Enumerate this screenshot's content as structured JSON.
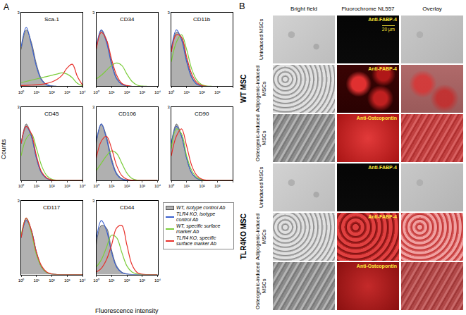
{
  "figure": {
    "panel_a_label": "A",
    "y_label": "Counts",
    "x_label": "Fluorescence intensity",
    "legend": "lower right"
  },
  "chart_data": [
    {
      "type": "line",
      "title": "Sca-1",
      "log": "x",
      "grid": false,
      "x": [
        1,
        2.15,
        4.64,
        10,
        21.5,
        46.4,
        100,
        215,
        464,
        1000,
        2154,
        4642,
        10000
      ],
      "xlim": [
        1,
        10000
      ],
      "xticks": [
        {
          "value": 1,
          "label": "10⁰"
        },
        {
          "value": 10,
          "label": "10¹"
        },
        {
          "value": 100,
          "label": "10²"
        },
        {
          "value": 1000,
          "label": "10³"
        },
        {
          "value": 10000,
          "label": "10⁴"
        }
      ],
      "ylim": [
        0,
        3
      ],
      "yticks": [
        3
      ],
      "series": [
        {
          "name": "WT, isotype control Ab",
          "type": "area",
          "color": "#b0b0b0",
          "values": [
            1.5,
            2.3,
            1.8,
            0.9,
            0.3,
            0.08,
            0.02,
            0,
            0,
            0,
            0,
            0,
            0
          ]
        },
        {
          "name": "TLR4 KO, isotype control Ab",
          "type": "line",
          "color": "#3a5fcd",
          "values": [
            1.6,
            2.4,
            1.7,
            0.8,
            0.25,
            0.06,
            0.01,
            0,
            0,
            0,
            0,
            0,
            0
          ]
        },
        {
          "name": "WT, specific surface marker Ab",
          "type": "line",
          "color": "#7ccd3c",
          "values": [
            0.15,
            0.2,
            0.25,
            0.3,
            0.35,
            0.4,
            0.45,
            0.5,
            0.55,
            0.5,
            0.35,
            0.12,
            0.02
          ]
        },
        {
          "name": "TLR4 KO, specific surface marker Ab",
          "type": "line",
          "color": "#e8302a",
          "values": [
            0.03,
            0.04,
            0.05,
            0.06,
            0.08,
            0.12,
            0.18,
            0.28,
            0.45,
            0.75,
            0.9,
            0.4,
            0.05
          ]
        }
      ]
    },
    {
      "type": "line",
      "title": "CD34",
      "log": "x",
      "grid": false,
      "x": [
        1,
        2.15,
        4.64,
        10,
        21.5,
        46.4,
        100,
        215,
        464,
        1000,
        2154,
        4642,
        10000
      ],
      "xlim": [
        1,
        10000
      ],
      "xticks": [
        {
          "value": 1,
          "label": "10⁰"
        },
        {
          "value": 10,
          "label": "10¹"
        },
        {
          "value": 100,
          "label": "10²"
        },
        {
          "value": 1000,
          "label": "10³"
        },
        {
          "value": 10000,
          "label": "10⁴"
        }
      ],
      "ylim": [
        0,
        3
      ],
      "yticks": [
        3
      ],
      "series": [
        {
          "name": "WT, isotype control Ab",
          "type": "area",
          "color": "#b0b0b0",
          "values": [
            1.5,
            2.3,
            1.9,
            1.0,
            0.35,
            0.1,
            0.02,
            0,
            0,
            0,
            0,
            0,
            0
          ]
        },
        {
          "name": "TLR4 KO, isotype control Ab",
          "type": "line",
          "color": "#3a5fcd",
          "values": [
            1.6,
            2.3,
            1.8,
            0.9,
            0.3,
            0.08,
            0.02,
            0,
            0,
            0,
            0,
            0,
            0
          ]
        },
        {
          "name": "WT, specific surface marker Ab",
          "type": "line",
          "color": "#7ccd3c",
          "values": [
            0.3,
            0.45,
            0.65,
            0.85,
            0.95,
            0.85,
            0.5,
            0.2,
            0.05,
            0.01,
            0,
            0,
            0
          ]
        },
        {
          "name": "TLR4 KO, specific surface marker Ab",
          "type": "line",
          "color": "#e8302a",
          "values": [
            1.5,
            2.2,
            1.9,
            1.1,
            0.45,
            0.12,
            0.03,
            0,
            0,
            0,
            0,
            0,
            0
          ]
        }
      ]
    },
    {
      "type": "line",
      "title": "CD11b",
      "log": "x",
      "grid": false,
      "x": [
        1,
        2.15,
        4.64,
        10,
        21.5,
        46.4,
        100,
        215,
        464,
        1000,
        2154,
        4642,
        10000
      ],
      "xlim": [
        1,
        10000
      ],
      "xticks": [
        {
          "value": 1,
          "label": "10⁰"
        },
        {
          "value": 10,
          "label": "10¹"
        },
        {
          "value": 100,
          "label": "10²"
        },
        {
          "value": 1000,
          "label": "10³"
        },
        {
          "value": 10000,
          "label": "10⁴"
        }
      ],
      "ylim": [
        0,
        3
      ],
      "yticks": [
        3
      ],
      "series": [
        {
          "name": "WT, isotype control Ab",
          "type": "area",
          "color": "#b0b0b0",
          "values": [
            1.4,
            2.2,
            2.0,
            1.1,
            0.4,
            0.1,
            0.02,
            0,
            0,
            0,
            0,
            0,
            0
          ]
        },
        {
          "name": "TLR4 KO, isotype control Ab",
          "type": "line",
          "color": "#3a5fcd",
          "values": [
            1.5,
            2.3,
            1.9,
            1.0,
            0.35,
            0.08,
            0.02,
            0,
            0,
            0,
            0,
            0,
            0
          ]
        },
        {
          "name": "WT, specific surface marker Ab",
          "type": "line",
          "color": "#7ccd3c",
          "values": [
            1.0,
            1.8,
            2.1,
            1.5,
            0.7,
            0.25,
            0.06,
            0.01,
            0,
            0,
            0,
            0,
            0
          ]
        },
        {
          "name": "TLR4 KO, specific surface marker Ab",
          "type": "line",
          "color": "#e8302a",
          "values": [
            1.4,
            2.1,
            2.0,
            1.2,
            0.5,
            0.15,
            0.03,
            0,
            0,
            0,
            0,
            0,
            0
          ]
        }
      ]
    },
    {
      "type": "line",
      "title": "CD45",
      "log": "x",
      "grid": false,
      "x": [
        1,
        2.15,
        4.64,
        10,
        21.5,
        46.4,
        100,
        215,
        464,
        1000,
        2154,
        4642,
        10000
      ],
      "xlim": [
        1,
        10000
      ],
      "xticks": [
        {
          "value": 1,
          "label": "10⁰"
        },
        {
          "value": 10,
          "label": "10¹"
        },
        {
          "value": 100,
          "label": "10²"
        },
        {
          "value": 1000,
          "label": "10³"
        },
        {
          "value": 10000,
          "label": "10⁴"
        }
      ],
      "ylim": [
        0,
        3
      ],
      "yticks": [
        3
      ],
      "series": [
        {
          "name": "WT, isotype control Ab",
          "type": "area",
          "color": "#b0b0b0",
          "values": [
            1.5,
            2.3,
            1.8,
            0.9,
            0.3,
            0.08,
            0.02,
            0,
            0,
            0,
            0,
            0,
            0
          ]
        },
        {
          "name": "TLR4 KO, isotype control Ab",
          "type": "line",
          "color": "#3a5fcd",
          "values": [
            1.5,
            2.2,
            1.8,
            0.9,
            0.3,
            0.08,
            0.02,
            0,
            0,
            0,
            0,
            0,
            0
          ]
        },
        {
          "name": "WT, specific surface marker Ab",
          "type": "line",
          "color": "#7ccd3c",
          "values": [
            1.0,
            1.7,
            1.9,
            1.3,
            0.6,
            0.2,
            0.05,
            0.01,
            0,
            0,
            0,
            0,
            0
          ]
        },
        {
          "name": "TLR4 KO, specific surface marker Ab",
          "type": "line",
          "color": "#e8302a",
          "values": [
            1.5,
            2.2,
            1.9,
            1.0,
            0.35,
            0.1,
            0.02,
            0,
            0,
            0,
            0,
            0,
            0
          ]
        }
      ]
    },
    {
      "type": "line",
      "title": "CD106",
      "log": "x",
      "grid": false,
      "x": [
        1,
        2.15,
        4.64,
        10,
        21.5,
        46.4,
        100,
        215,
        464,
        1000,
        2154,
        4642,
        10000
      ],
      "xlim": [
        1,
        10000
      ],
      "xticks": [
        {
          "value": 1,
          "label": "10⁰"
        },
        {
          "value": 10,
          "label": "10¹"
        },
        {
          "value": 100,
          "label": "10²"
        },
        {
          "value": 1000,
          "label": "10³"
        },
        {
          "value": 10000,
          "label": "10⁴"
        }
      ],
      "ylim": [
        0,
        3
      ],
      "yticks": [
        3
      ],
      "series": [
        {
          "name": "WT, isotype control Ab",
          "type": "area",
          "color": "#b0b0b0",
          "values": [
            1.5,
            2.3,
            1.8,
            0.9,
            0.3,
            0.08,
            0.02,
            0,
            0,
            0,
            0,
            0,
            0
          ]
        },
        {
          "name": "TLR4 KO, isotype control Ab",
          "type": "line",
          "color": "#3a5fcd",
          "values": [
            1.6,
            2.3,
            1.7,
            0.8,
            0.25,
            0.06,
            0.01,
            0,
            0,
            0,
            0,
            0,
            0
          ]
        },
        {
          "name": "WT, specific surface marker Ab",
          "type": "line",
          "color": "#7ccd3c",
          "values": [
            0.4,
            0.7,
            1.0,
            1.2,
            1.1,
            0.7,
            0.3,
            0.08,
            0.01,
            0,
            0,
            0,
            0
          ]
        },
        {
          "name": "TLR4 KO, specific surface marker Ab",
          "type": "line",
          "color": "#e8302a",
          "values": [
            0.9,
            1.6,
            1.8,
            1.3,
            0.6,
            0.2,
            0.05,
            0.01,
            0,
            0,
            0,
            0,
            0
          ]
        }
      ]
    },
    {
      "type": "line",
      "title": "CD90",
      "log": "x",
      "grid": false,
      "x": [
        1,
        2.15,
        4.64,
        10,
        21.5,
        46.4,
        100,
        215,
        464,
        1000,
        2154,
        4642,
        10000
      ],
      "xlim": [
        1,
        10000
      ],
      "xticks": [
        {
          "value": 1,
          "label": "10⁰"
        },
        {
          "value": 10,
          "label": "10¹"
        },
        {
          "value": 100,
          "label": "10²"
        },
        {
          "value": 1000,
          "label": "10³"
        },
        {
          "value": 10000,
          "label": "10⁴"
        }
      ],
      "ylim": [
        0,
        3
      ],
      "yticks": [
        3
      ],
      "series": [
        {
          "name": "WT, isotype control Ab",
          "type": "area",
          "color": "#b0b0b0",
          "values": [
            1.5,
            2.3,
            1.8,
            0.9,
            0.3,
            0.08,
            0.02,
            0,
            0,
            0,
            0,
            0,
            0
          ]
        },
        {
          "name": "TLR4 KO, isotype control Ab",
          "type": "line",
          "color": "#3a5fcd",
          "values": [
            1.5,
            2.2,
            1.8,
            0.9,
            0.3,
            0.08,
            0.02,
            0,
            0,
            0,
            0,
            0,
            0
          ]
        },
        {
          "name": "WT, specific surface marker Ab",
          "type": "line",
          "color": "#7ccd3c",
          "values": [
            1.3,
            2.1,
            1.9,
            1.0,
            0.4,
            0.12,
            0.03,
            0,
            0,
            0,
            0,
            0,
            0
          ]
        },
        {
          "name": "TLR4 KO, specific surface marker Ab",
          "type": "line",
          "color": "#e8302a",
          "values": [
            1.0,
            1.8,
            2.1,
            1.4,
            0.6,
            0.2,
            0.05,
            0.01,
            0,
            0,
            0,
            0,
            0
          ]
        }
      ]
    },
    {
      "type": "line",
      "title": "CD117",
      "log": "x",
      "grid": false,
      "x": [
        1,
        2.15,
        4.64,
        10,
        21.5,
        46.4,
        100,
        215,
        464,
        1000,
        2154,
        4642,
        10000
      ],
      "xlim": [
        1,
        10000
      ],
      "xticks": [
        {
          "value": 1,
          "label": "10⁰"
        },
        {
          "value": 10,
          "label": "10¹"
        },
        {
          "value": 100,
          "label": "10²"
        },
        {
          "value": 1000,
          "label": "10³"
        },
        {
          "value": 10000,
          "label": "10⁴"
        }
      ],
      "ylim": [
        0,
        3
      ],
      "yticks": [
        3
      ],
      "series": [
        {
          "name": "WT, isotype control Ab",
          "type": "area",
          "color": "#b0b0b0",
          "values": [
            1.5,
            2.3,
            1.8,
            0.9,
            0.3,
            0.08,
            0.02,
            0,
            0,
            0,
            0,
            0,
            0
          ]
        },
        {
          "name": "TLR4 KO, isotype control Ab",
          "type": "line",
          "color": "#3a5fcd",
          "values": [
            1.5,
            2.2,
            1.8,
            0.9,
            0.3,
            0.08,
            0.02,
            0,
            0,
            0,
            0,
            0,
            0
          ]
        },
        {
          "name": "WT, specific surface marker Ab",
          "type": "line",
          "color": "#7ccd3c",
          "values": [
            1.6,
            2.3,
            1.7,
            0.8,
            0.3,
            0.08,
            0.02,
            0,
            0,
            0,
            0,
            0,
            0
          ]
        },
        {
          "name": "TLR4 KO, specific surface marker Ab",
          "type": "line",
          "color": "#e8302a",
          "values": [
            1.5,
            2.3,
            1.8,
            0.9,
            0.35,
            0.1,
            0.02,
            0,
            0,
            0,
            0,
            0,
            0
          ]
        }
      ]
    },
    {
      "type": "line",
      "title": "CD44",
      "log": "x",
      "grid": false,
      "x": [
        1,
        2.15,
        4.64,
        10,
        21.5,
        46.4,
        100,
        215,
        464,
        1000,
        2154,
        4642,
        10000
      ],
      "xlim": [
        1,
        10000
      ],
      "xticks": [
        {
          "value": 1,
          "label": "10⁰"
        },
        {
          "value": 10,
          "label": "10¹"
        },
        {
          "value": 100,
          "label": "10²"
        },
        {
          "value": 1000,
          "label": "10³"
        },
        {
          "value": 10000,
          "label": "10⁴"
        }
      ],
      "ylim": [
        0,
        3
      ],
      "yticks": [
        3
      ],
      "series": [
        {
          "name": "WT, isotype control Ab",
          "type": "area",
          "color": "#b0b0b0",
          "values": [
            1.2,
            2.0,
            1.9,
            1.0,
            0.35,
            0.1,
            0.02,
            0,
            0,
            0,
            0,
            0,
            0
          ]
        },
        {
          "name": "TLR4 KO, isotype control Ab",
          "type": "line",
          "color": "#3a5fcd",
          "values": [
            1.4,
            2.2,
            1.8,
            0.9,
            0.3,
            0.08,
            0.02,
            0,
            0,
            0,
            0,
            0,
            0
          ]
        },
        {
          "name": "WT, specific surface marker Ab",
          "type": "line",
          "color": "#7ccd3c",
          "values": [
            0.3,
            0.6,
            1.1,
            1.6,
            1.5,
            0.9,
            0.35,
            0.1,
            0.02,
            0,
            0,
            0,
            0
          ]
        },
        {
          "name": "TLR4 KO, specific surface marker Ab",
          "type": "line",
          "color": "#e8302a",
          "values": [
            0.1,
            0.25,
            0.6,
            1.2,
            1.9,
            2.0,
            1.2,
            0.4,
            0.08,
            0.01,
            0,
            0,
            0
          ]
        }
      ]
    }
  ],
  "panel_b": {
    "label": "B",
    "columns": [
      "Bright field",
      "Fluorochrome NL557",
      "Overlay"
    ],
    "groups": [
      {
        "label": "WT MSC",
        "rows": [
          {
            "label": "Uninduced MSCs",
            "stain": "Anti-FABP-4",
            "scale_bar": "20 µm"
          },
          {
            "label": "Adipogenic-induced MSCs",
            "stain": "Anti-FABP-4"
          },
          {
            "label": "Osteogenic-induced MSCs",
            "stain": "Anti-Osteopontin"
          }
        ]
      },
      {
        "label": "TLR4KO MSC",
        "rows": [
          {
            "label": "Uninduced MSCs",
            "stain": "Anti-FABP-4"
          },
          {
            "label": "Adipogenic-induced MSCs",
            "stain": "Anti-FABP-4"
          },
          {
            "label": "Osteogenic-induced MSCs",
            "stain": "Anti-Osteopontin"
          }
        ]
      }
    ]
  }
}
